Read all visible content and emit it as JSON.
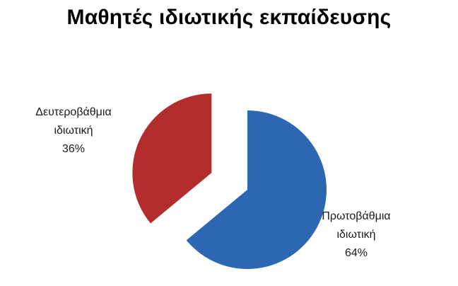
{
  "chart_data": {
    "type": "pie",
    "title": "Μαθητές ιδιωτικής εκπαίδευσης",
    "slices": [
      {
        "label_lines": [
          "Πρωτοβάθμια",
          "ιδιωτική",
          "64%"
        ],
        "value": 64,
        "color": "#2E67B1",
        "exploded": false
      },
      {
        "label_lines": [
          "Δευτεροβάθμια",
          "ιδιωτική",
          "36%"
        ],
        "value": 36,
        "color": "#B32D2D",
        "exploded": true
      }
    ],
    "start_angle_deg": 0,
    "direction": "clockwise",
    "legend": "none",
    "data_labels": "outside"
  }
}
